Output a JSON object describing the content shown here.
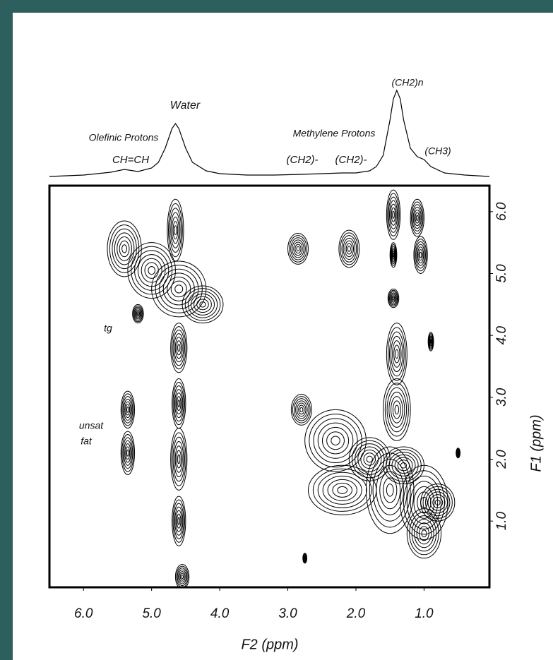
{
  "chart_data": {
    "type": "contour",
    "xlabel": "F2 (ppm)",
    "ylabel": "F1 (ppm)",
    "xlim": [
      6.5,
      0.04
    ],
    "ylim": [
      -0.07,
      6.42
    ],
    "xticks": [
      {
        "value": 6,
        "label": "6.0"
      },
      {
        "value": 5,
        "label": "5.0"
      },
      {
        "value": 4,
        "label": "4.0"
      },
      {
        "value": 3,
        "label": "3.0"
      },
      {
        "value": 2,
        "label": "2.0"
      },
      {
        "value": 1,
        "label": "1.0"
      }
    ],
    "yticks": [
      {
        "value": 6,
        "label": "6.0"
      },
      {
        "value": 5,
        "label": "5.0"
      },
      {
        "value": 4,
        "label": "4.0"
      },
      {
        "value": 3,
        "label": "3.0"
      },
      {
        "value": 2,
        "label": "2.0"
      },
      {
        "value": 1,
        "label": "1.0"
      }
    ],
    "color": "#000000",
    "annotations": [
      "Water",
      "Olefinic Protons",
      "CH=CH",
      "Methylene Protons",
      "(CH2)-",
      "(CH2)-",
      "(CH2)n",
      "(CH3)",
      "tg",
      "unsat",
      "fat"
    ],
    "projection": {
      "x": [
        6.5,
        6.0,
        5.6,
        5.4,
        5.2,
        5.0,
        4.9,
        4.8,
        4.7,
        4.65,
        4.6,
        4.5,
        4.4,
        4.2,
        4.0,
        3.6,
        3.2,
        2.8,
        2.5,
        2.2,
        2.0,
        1.8,
        1.7,
        1.6,
        1.5,
        1.45,
        1.4,
        1.35,
        1.3,
        1.2,
        1.1,
        1.0,
        0.9,
        0.7,
        0.4,
        0.04
      ],
      "values": [
        0,
        2,
        6,
        10,
        7,
        12,
        20,
        40,
        68,
        75,
        68,
        40,
        20,
        8,
        4,
        2,
        2,
        3,
        4,
        5,
        5,
        8,
        14,
        30,
        80,
        110,
        122,
        110,
        80,
        40,
        28,
        24,
        14,
        5,
        2,
        0
      ]
    },
    "peaks": [
      {
        "x": 5.4,
        "y": 5.4,
        "sx": 0.25,
        "sy": 0.45
      },
      {
        "x": 5.0,
        "y": 5.05,
        "sx": 0.35,
        "sy": 0.45
      },
      {
        "x": 4.6,
        "y": 4.75,
        "sx": 0.4,
        "sy": 0.45
      },
      {
        "x": 4.25,
        "y": 4.5,
        "sx": 0.3,
        "sy": 0.3
      },
      {
        "x": 4.65,
        "y": 5.7,
        "sx": 0.12,
        "sy": 0.5
      },
      {
        "x": 4.6,
        "y": 3.8,
        "sx": 0.12,
        "sy": 0.4
      },
      {
        "x": 4.6,
        "y": 2.9,
        "sx": 0.1,
        "sy": 0.4
      },
      {
        "x": 4.6,
        "y": 2.0,
        "sx": 0.12,
        "sy": 0.5
      },
      {
        "x": 4.6,
        "y": 1.0,
        "sx": 0.1,
        "sy": 0.4
      },
      {
        "x": 4.55,
        "y": 0.1,
        "sx": 0.1,
        "sy": 0.2
      },
      {
        "x": 2.85,
        "y": 5.4,
        "sx": 0.15,
        "sy": 0.25
      },
      {
        "x": 2.1,
        "y": 5.4,
        "sx": 0.15,
        "sy": 0.3
      },
      {
        "x": 5.35,
        "y": 2.8,
        "sx": 0.1,
        "sy": 0.3
      },
      {
        "x": 5.35,
        "y": 2.1,
        "sx": 0.1,
        "sy": 0.35
      },
      {
        "x": 5.2,
        "y": 4.35,
        "sx": 0.08,
        "sy": 0.15
      },
      {
        "x": 1.45,
        "y": 5.95,
        "sx": 0.1,
        "sy": 0.4
      },
      {
        "x": 1.1,
        "y": 5.9,
        "sx": 0.1,
        "sy": 0.3
      },
      {
        "x": 1.45,
        "y": 5.3,
        "sx": 0.05,
        "sy": 0.2
      },
      {
        "x": 1.05,
        "y": 5.3,
        "sx": 0.1,
        "sy": 0.3
      },
      {
        "x": 1.45,
        "y": 4.6,
        "sx": 0.08,
        "sy": 0.15
      },
      {
        "x": 1.4,
        "y": 3.7,
        "sx": 0.15,
        "sy": 0.5
      },
      {
        "x": 1.4,
        "y": 2.8,
        "sx": 0.2,
        "sy": 0.5
      },
      {
        "x": 2.8,
        "y": 2.8,
        "sx": 0.15,
        "sy": 0.25
      },
      {
        "x": 2.3,
        "y": 2.3,
        "sx": 0.45,
        "sy": 0.5
      },
      {
        "x": 2.2,
        "y": 1.5,
        "sx": 0.5,
        "sy": 0.4
      },
      {
        "x": 1.5,
        "y": 1.5,
        "sx": 0.35,
        "sy": 0.7
      },
      {
        "x": 1.0,
        "y": 1.3,
        "sx": 0.35,
        "sy": 0.6
      },
      {
        "x": 1.8,
        "y": 2.0,
        "sx": 0.3,
        "sy": 0.35
      },
      {
        "x": 1.3,
        "y": 1.9,
        "sx": 0.3,
        "sy": 0.3
      },
      {
        "x": 1.0,
        "y": 0.8,
        "sx": 0.25,
        "sy": 0.4
      },
      {
        "x": 0.8,
        "y": 1.3,
        "sx": 0.25,
        "sy": 0.3
      },
      {
        "x": 0.9,
        "y": 3.9,
        "sx": 0.04,
        "sy": 0.15
      },
      {
        "x": 0.5,
        "y": 2.1,
        "sx": 0.03,
        "sy": 0.08
      },
      {
        "x": 2.75,
        "y": 0.4,
        "sx": 0.03,
        "sy": 0.08
      }
    ]
  }
}
